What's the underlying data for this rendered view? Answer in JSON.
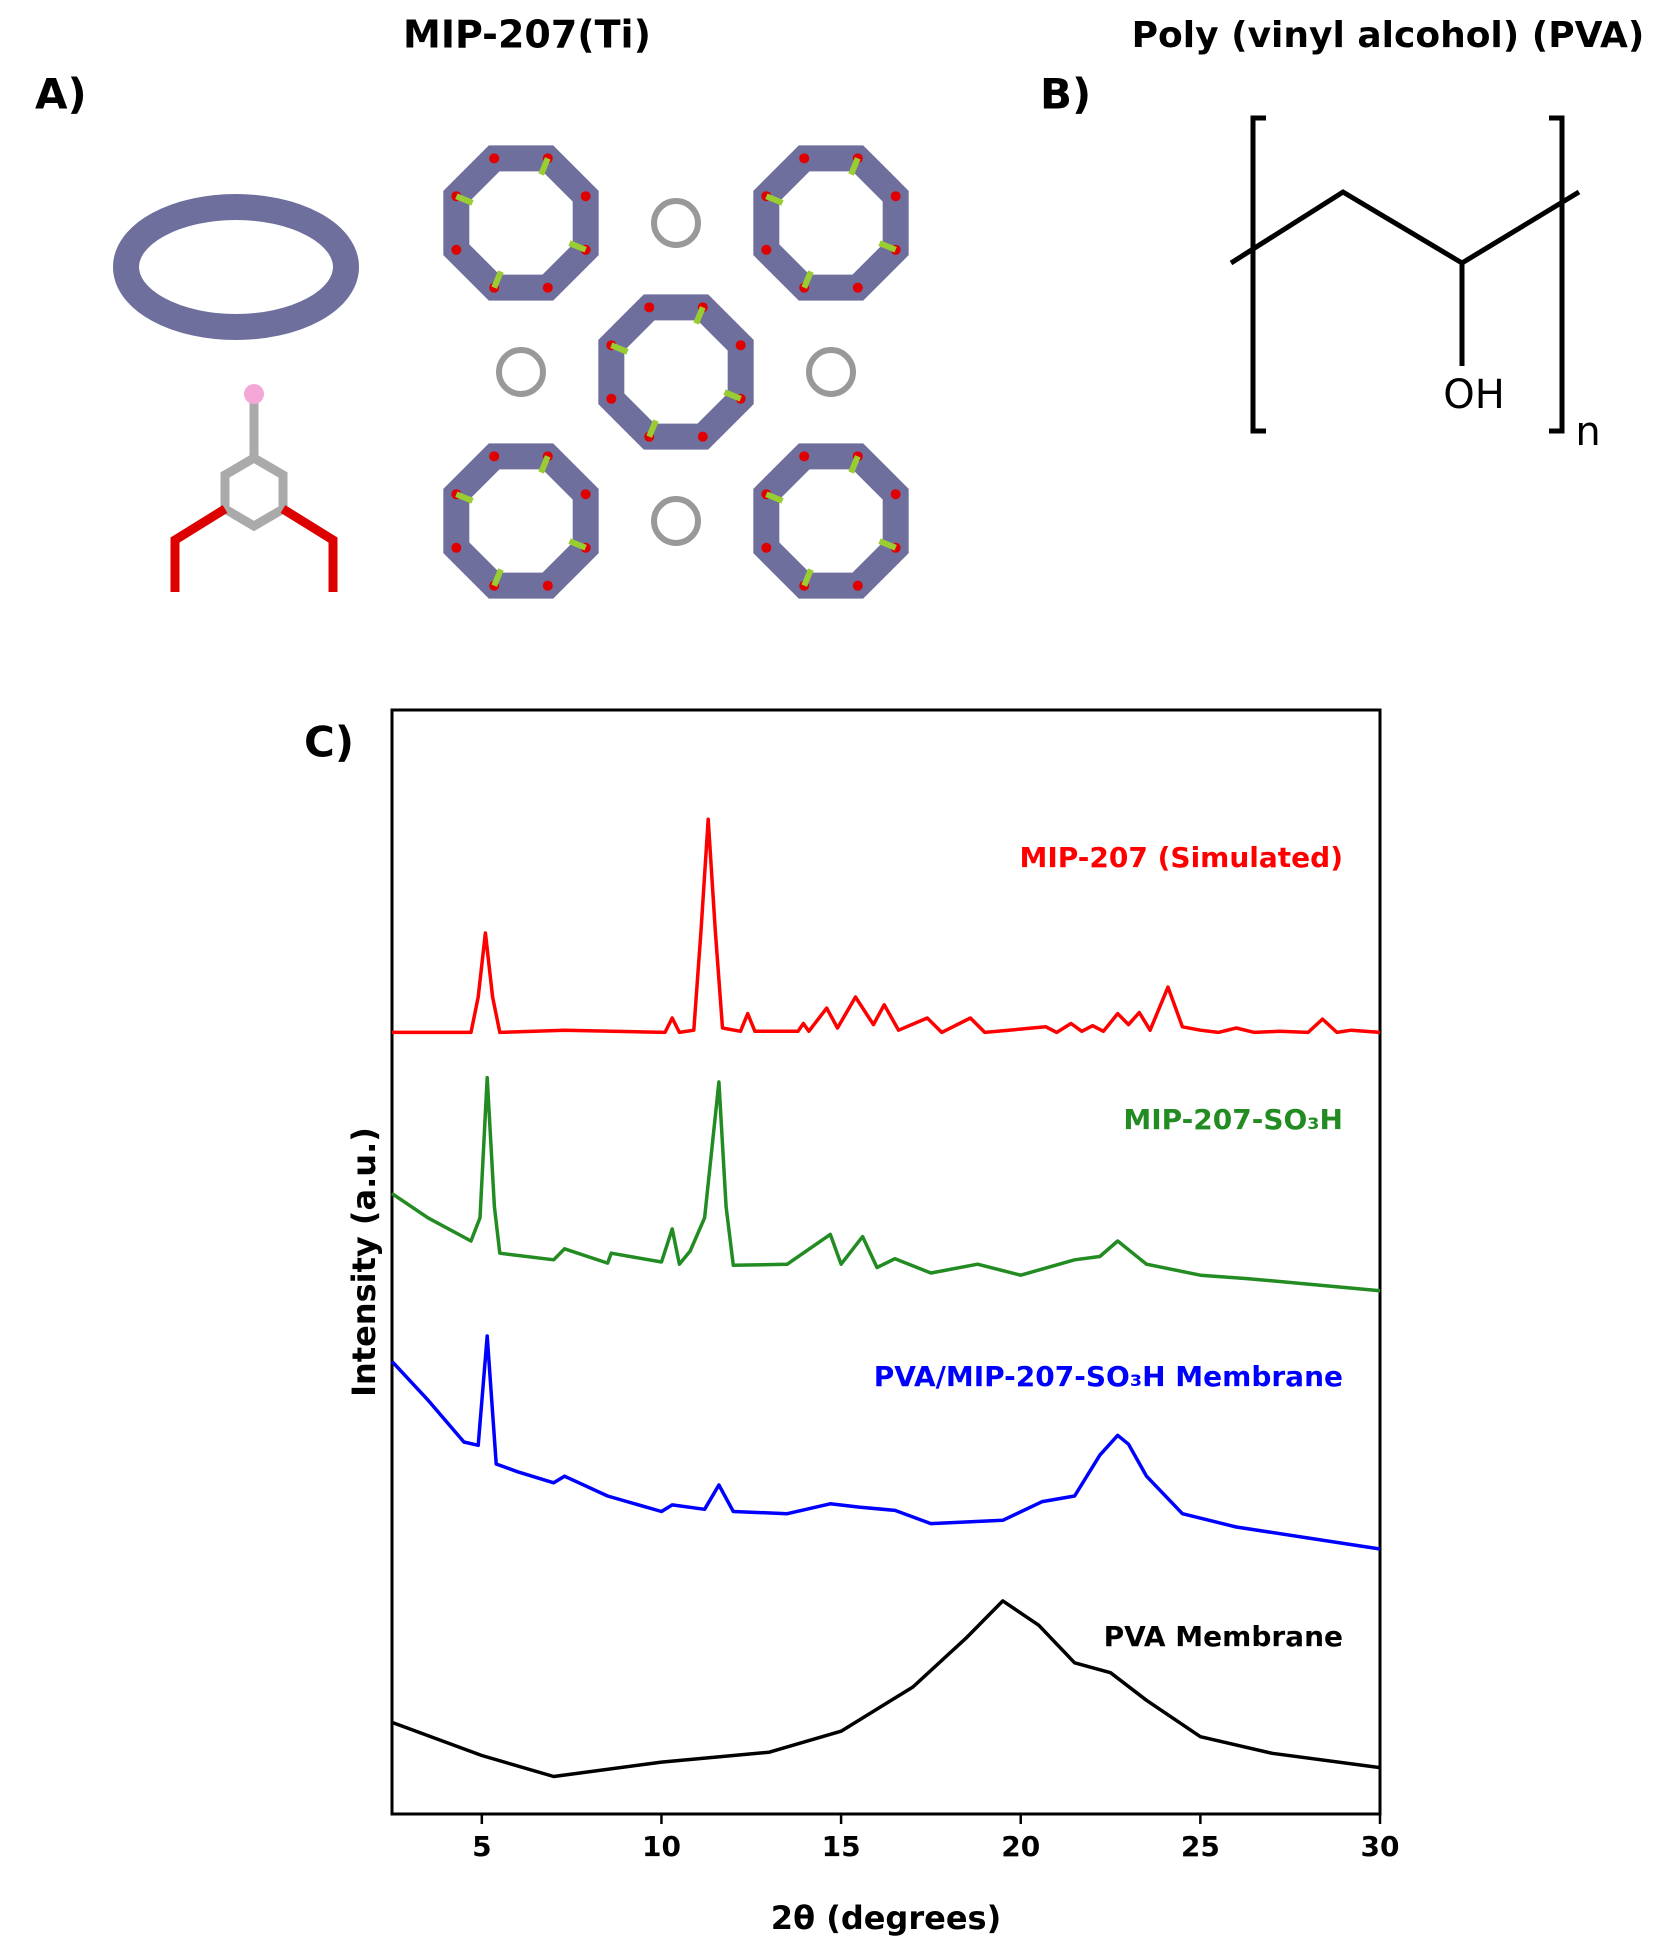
{
  "panel_a": {
    "label": "A)",
    "title": "MIP-207(Ti)"
  },
  "panel_b": {
    "label": "B)",
    "title": "Poly (vinyl alcohol) (PVA)",
    "group": "OH",
    "subscript": "n"
  },
  "panel_c": {
    "label": "C)"
  },
  "chart_data": {
    "type": "line",
    "xlabel": "2θ (degrees)",
    "ylabel": "Intensity (a.u.)",
    "xlim": [
      2.5,
      30
    ],
    "xticks": [
      5,
      10,
      15,
      20,
      25,
      30
    ],
    "ylim": [
      0,
      100
    ],
    "series": [
      {
        "name": "MIP-207 (Simulated)",
        "color": "#ff0000",
        "x": [
          2.5,
          4.7,
          4.9,
          5.1,
          5.3,
          5.5,
          7.3,
          10.1,
          10.3,
          10.5,
          10.9,
          11.1,
          11.3,
          11.5,
          11.7,
          12.2,
          12.4,
          12.6,
          13.8,
          13.95,
          14.1,
          14.6,
          14.9,
          15.4,
          15.9,
          16.2,
          16.6,
          17.4,
          17.8,
          18.6,
          19.0,
          20.7,
          21.0,
          21.4,
          21.7,
          22.0,
          22.3,
          22.7,
          23.0,
          23.3,
          23.6,
          24.1,
          24.5,
          25.0,
          25.5,
          26.0,
          26.5,
          27.2,
          28.0,
          28.4,
          28.8,
          29.2,
          30
        ],
        "values": [
          70.8,
          70.8,
          74,
          79.8,
          74,
          70.8,
          71.0,
          70.8,
          72.1,
          70.8,
          71.0,
          80,
          90.1,
          80,
          71.2,
          70.9,
          72.5,
          70.9,
          70.9,
          71.6,
          70.9,
          73.0,
          71.2,
          74.0,
          71.5,
          73.3,
          71.0,
          72.1,
          70.8,
          72.1,
          70.8,
          71.3,
          70.8,
          71.6,
          70.9,
          71.4,
          70.9,
          72.5,
          71.5,
          72.6,
          71.0,
          74.9,
          71.3,
          71.0,
          70.8,
          71.2,
          70.8,
          70.9,
          70.8,
          72.0,
          70.8,
          71.0,
          70.8
        ]
      },
      {
        "name": "MIP-207-SO₃H",
        "color": "#228b22",
        "x": [
          2.5,
          3.5,
          4.7,
          4.95,
          5.15,
          5.35,
          5.5,
          7,
          7.3,
          8.5,
          8.6,
          10,
          10.3,
          10.5,
          10.8,
          11.2,
          11.6,
          11.8,
          12.0,
          13.5,
          14.7,
          15.0,
          15.6,
          16.0,
          16.5,
          17.5,
          18.8,
          20,
          21.5,
          22.2,
          22.7,
          23.5,
          25,
          26.3,
          28,
          30
        ],
        "values": [
          56.2,
          54,
          51.9,
          54,
          66.7,
          55,
          50.8,
          50.2,
          51.2,
          49.9,
          50.8,
          50.0,
          53,
          49.8,
          51,
          54,
          66.3,
          55,
          49.7,
          49.8,
          52.5,
          49.8,
          52.3,
          49.5,
          50.3,
          49.0,
          49.8,
          48.8,
          50.2,
          50.5,
          51.9,
          49.8,
          48.8,
          48.5,
          48.0,
          47.4
        ]
      },
      {
        "name": "PVA/MIP-207-SO₃H Membrane",
        "color": "#0000ff",
        "x": [
          2.5,
          3.5,
          4.5,
          4.9,
          5.15,
          5.4,
          6,
          7,
          7.3,
          8.5,
          10,
          10.3,
          11.2,
          11.6,
          12,
          13.5,
          14.7,
          15.5,
          16.5,
          17.5,
          19.5,
          20.6,
          21.5,
          22.2,
          22.7,
          23.0,
          23.5,
          24.5,
          26,
          28,
          30
        ],
        "values": [
          41.0,
          37.5,
          33.7,
          33.4,
          43.3,
          31.7,
          31.0,
          30.0,
          30.6,
          28.8,
          27.4,
          28.0,
          27.6,
          29.8,
          27.4,
          27.2,
          28.1,
          27.8,
          27.5,
          26.3,
          26.6,
          28.3,
          28.8,
          32.5,
          34.3,
          33.5,
          30.6,
          27.2,
          26.0,
          25.0,
          24.0
        ]
      },
      {
        "name": "PVA Membrane",
        "color": "#000000",
        "x": [
          2.5,
          5,
          7,
          10,
          13,
          15,
          17,
          18.5,
          19.5,
          20.5,
          21.5,
          22.5,
          23.5,
          25,
          27,
          30
        ],
        "values": [
          8.3,
          5.3,
          3.4,
          4.7,
          5.6,
          7.5,
          11.5,
          16,
          19.3,
          17.1,
          13.7,
          12.8,
          10.3,
          7.0,
          5.5,
          4.2
        ]
      }
    ]
  }
}
